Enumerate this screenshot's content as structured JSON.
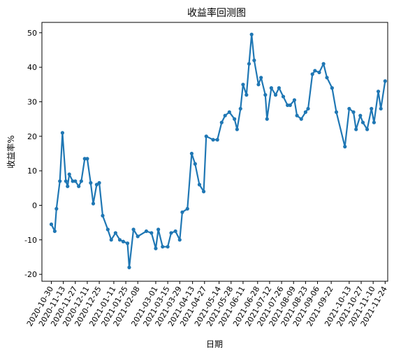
{
  "chart_data": {
    "type": "line",
    "title": "收益率回测图",
    "xlabel": "日期",
    "ylabel": "收益率%",
    "grid": false,
    "ylim": [
      -22,
      53
    ],
    "xlim": [
      "2020-10-19",
      "2021-11-27"
    ],
    "yticks": [
      -20,
      -10,
      0,
      10,
      20,
      30,
      40,
      50
    ],
    "xticks": [
      "2020-10-30",
      "2020-11-13",
      "2020-11-27",
      "2020-12-11",
      "2020-12-25",
      "2021-01-11",
      "2021-01-25",
      "2021-02-08",
      "2021-03-01",
      "2021-03-15",
      "2021-03-29",
      "2021-04-13",
      "2021-04-27",
      "2021-05-14",
      "2021-05-28",
      "2021-06-11",
      "2021-06-28",
      "2021-07-12",
      "2021-07-26",
      "2021-08-09",
      "2021-08-23",
      "2021-09-06",
      "2021-09-22",
      "2021-10-13",
      "2021-10-27",
      "2021-11-10",
      "2021-11-24"
    ],
    "series": [
      {
        "color": "#1f77b4",
        "x": [
          "2020-10-30",
          "2020-11-03",
          "2020-11-05",
          "2020-11-09",
          "2020-11-12",
          "2020-11-16",
          "2020-11-18",
          "2020-11-20",
          "2020-11-24",
          "2020-11-27",
          "2020-12-01",
          "2020-12-04",
          "2020-12-08",
          "2020-12-11",
          "2020-12-15",
          "2020-12-18",
          "2020-12-22",
          "2020-12-25",
          "2020-12-29",
          "2021-01-04",
          "2021-01-08",
          "2021-01-13",
          "2021-01-18",
          "2021-01-22",
          "2021-01-27",
          "2021-01-29",
          "2021-02-03",
          "2021-02-08",
          "2021-02-18",
          "2021-02-24",
          "2021-03-01",
          "2021-03-04",
          "2021-03-09",
          "2021-03-15",
          "2021-03-19",
          "2021-03-24",
          "2021-03-29",
          "2021-04-01",
          "2021-04-07",
          "2021-04-12",
          "2021-04-16",
          "2021-04-21",
          "2021-04-26",
          "2021-04-29",
          "2021-05-07",
          "2021-05-12",
          "2021-05-17",
          "2021-05-21",
          "2021-05-26",
          "2021-06-01",
          "2021-06-04",
          "2021-06-08",
          "2021-06-11",
          "2021-06-15",
          "2021-06-18",
          "2021-06-21",
          "2021-06-24",
          "2021-06-29",
          "2021-07-02",
          "2021-07-07",
          "2021-07-09",
          "2021-07-14",
          "2021-07-19",
          "2021-07-23",
          "2021-07-28",
          "2021-08-02",
          "2021-08-05",
          "2021-08-10",
          "2021-08-13",
          "2021-08-18",
          "2021-08-23",
          "2021-08-26",
          "2021-08-31",
          "2021-09-03",
          "2021-09-08",
          "2021-09-13",
          "2021-09-17",
          "2021-09-23",
          "2021-09-28",
          "2021-10-08",
          "2021-10-13",
          "2021-10-18",
          "2021-10-21",
          "2021-10-26",
          "2021-10-29",
          "2021-11-03",
          "2021-11-08",
          "2021-11-11",
          "2021-11-16",
          "2021-11-19",
          "2021-11-24"
        ],
        "values": [
          -5.5,
          -7.5,
          -1,
          7,
          21,
          7,
          5.5,
          9,
          7,
          7,
          5.5,
          7,
          13.5,
          13.5,
          6.5,
          0.5,
          6,
          6.5,
          -3,
          -7,
          -10,
          -8,
          -10,
          -10.5,
          -11,
          -18,
          -7,
          -9,
          -7.5,
          -8,
          -12.5,
          -7,
          -12,
          -12,
          -8,
          -7.5,
          -10,
          -2,
          -1,
          15,
          12,
          6,
          4,
          20,
          19,
          19,
          24,
          26,
          27,
          25,
          22,
          28,
          35,
          32,
          41,
          49.5,
          42,
          35,
          37,
          32,
          25,
          34,
          32,
          34,
          31.5,
          29,
          29,
          30.5,
          26,
          25,
          27,
          28,
          38,
          39,
          38.5,
          41,
          37,
          34,
          27,
          17,
          28,
          27,
          22,
          26,
          24,
          22,
          28,
          24,
          33,
          28,
          36
        ]
      }
    ]
  }
}
